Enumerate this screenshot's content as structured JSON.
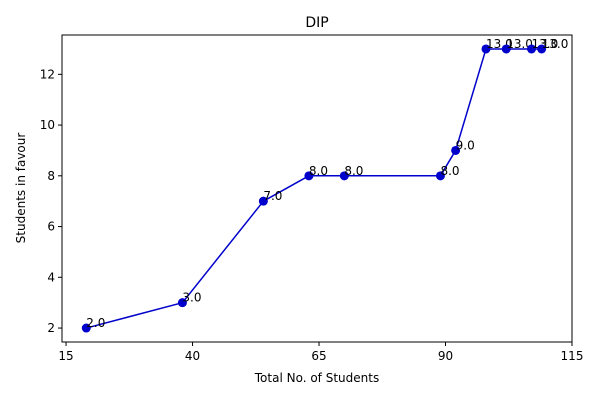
{
  "chart_data": {
    "type": "line",
    "title": "DIP",
    "xlabel": "Total No. of Students",
    "ylabel": "Students in favour",
    "xlim": [
      14.2,
      115
    ],
    "ylim": [
      1.45,
      13.55
    ],
    "xticks": [
      15,
      40,
      65,
      90,
      115
    ],
    "xtick_labels": [
      "15",
      "40",
      "65",
      "90",
      "115"
    ],
    "yticks": [
      2,
      4,
      6,
      8,
      10,
      12
    ],
    "ytick_labels": [
      "2",
      "4",
      "6",
      "8",
      "10",
      "12"
    ],
    "grid": false,
    "series": [
      {
        "color": "#0000cc",
        "marker": "circle",
        "x": [
          19,
          38,
          54,
          63,
          70,
          89,
          92,
          98,
          102,
          107,
          109
        ],
        "y": [
          2,
          3,
          7,
          8,
          8,
          8,
          9,
          13,
          13,
          13,
          13
        ],
        "labels": [
          "2.0",
          "3.0",
          "7.0",
          "8.0",
          "8.0",
          "8.0",
          "9.0",
          "13.0",
          "13.0",
          "13.0",
          "13.0"
        ]
      }
    ]
  }
}
